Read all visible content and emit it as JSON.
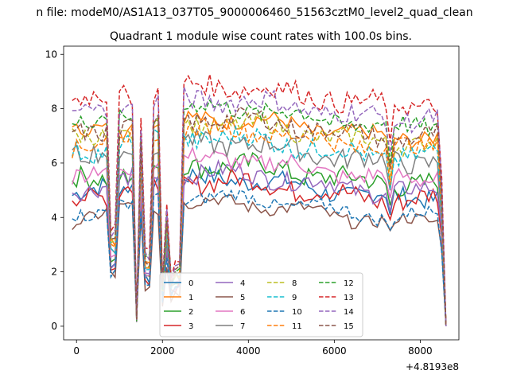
{
  "chart_data": {
    "type": "line",
    "suptitle": "n file: modeM0/AS1A13_037T05_9000006460_51563cztM0_level2_quad_clean",
    "title": "Quadrant 1 module wise count rates with 100.0s bins.",
    "xlabel": "",
    "ylabel": "",
    "x_offset_label": "+4.8193e8",
    "xlim": [
      -300,
      8900
    ],
    "ylim": [
      -0.5,
      10.3
    ],
    "xticks": [
      "0",
      "2000",
      "4000",
      "6000",
      "8000"
    ],
    "yticks": [
      "0",
      "2",
      "4",
      "6",
      "8",
      "10"
    ],
    "legend_position": "lower-center",
    "legend_columns": 4,
    "x": [
      -100,
      0,
      100,
      200,
      300,
      400,
      500,
      600,
      700,
      800,
      900,
      1000,
      1100,
      1200,
      1300,
      1400,
      1500,
      1600,
      1700,
      1800,
      1900,
      2000,
      2100,
      2200,
      2300,
      2400,
      2500,
      2600,
      2700,
      2800,
      2900,
      3000,
      3100,
      3200,
      3300,
      3400,
      3500,
      3600,
      3700,
      3800,
      3900,
      4000,
      4100,
      4200,
      4300,
      4400,
      4500,
      4600,
      4700,
      4800,
      4900,
      5000,
      5100,
      5200,
      5300,
      5400,
      5500,
      5600,
      5700,
      5800,
      5900,
      6000,
      6100,
      6200,
      6300,
      6400,
      6500,
      6600,
      6700,
      6800,
      6900,
      7000,
      7100,
      7200,
      7300,
      7400,
      7500,
      7600,
      7700,
      7800,
      7900,
      8000,
      8100,
      8200,
      8300,
      8400,
      8500,
      8600
    ],
    "gaps": [
      {
        "start": 800,
        "end": 900,
        "depth": 0.4
      },
      {
        "start": 1400,
        "end": 1500,
        "depth": 0.02
      },
      {
        "start": 1500,
        "end": 1600,
        "depth": 0.9
      },
      {
        "start": 1600,
        "end": 1700,
        "depth": 0.3
      },
      {
        "start": 2000,
        "end": 2100,
        "depth": 0.15
      },
      {
        "start": 2100,
        "end": 2200,
        "depth": 0.5
      },
      {
        "start": 2200,
        "end": 2300,
        "depth": 0.2
      },
      {
        "start": 2300,
        "end": 2400,
        "depth": 0.25
      },
      {
        "start": 7300,
        "end": 7300,
        "depth": 0.75
      },
      {
        "start": 8500,
        "end": 8500,
        "depth": 0.6
      },
      {
        "start": 8600,
        "end": 8600,
        "depth": 0.0
      }
    ],
    "series": [
      {
        "name": "0",
        "color": "#1f77b4",
        "dash": "solid",
        "base": 5.1,
        "amp": 0.35
      },
      {
        "name": "1",
        "color": "#ff7f0e",
        "dash": "solid",
        "base": 7.3,
        "amp": 0.3
      },
      {
        "name": "2",
        "color": "#2ca02c",
        "dash": "solid",
        "base": 5.6,
        "amp": 0.4
      },
      {
        "name": "3",
        "color": "#d62728",
        "dash": "solid",
        "base": 5.0,
        "amp": 0.4
      },
      {
        "name": "4",
        "color": "#9467bd",
        "dash": "solid",
        "base": 5.3,
        "amp": 0.35
      },
      {
        "name": "5",
        "color": "#8c564b",
        "dash": "solid",
        "base": 4.2,
        "amp": 0.25
      },
      {
        "name": "6",
        "color": "#e377c2",
        "dash": "solid",
        "base": 5.8,
        "amp": 0.35
      },
      {
        "name": "7",
        "color": "#7f7f7f",
        "dash": "solid",
        "base": 6.4,
        "amp": 0.4
      },
      {
        "name": "8",
        "color": "#bcbd22",
        "dash": "dashed",
        "base": 7.1,
        "amp": 0.35
      },
      {
        "name": "9",
        "color": "#17becf",
        "dash": "dashed",
        "base": 6.6,
        "amp": 0.4
      },
      {
        "name": "10",
        "color": "#1f77b4",
        "dash": "dashed",
        "base": 4.4,
        "amp": 0.25
      },
      {
        "name": "11",
        "color": "#ff7f0e",
        "dash": "dashed",
        "base": 6.9,
        "amp": 0.35
      },
      {
        "name": "12",
        "color": "#2ca02c",
        "dash": "dashed",
        "base": 7.7,
        "amp": 0.35
      },
      {
        "name": "13",
        "color": "#d62728",
        "dash": "dashed",
        "base": 8.5,
        "amp": 0.4
      },
      {
        "name": "14",
        "color": "#9467bd",
        "dash": "dashed",
        "base": 8.0,
        "amp": 0.4
      },
      {
        "name": "15",
        "color": "#8c564b",
        "dash": "dashed",
        "base": 7.3,
        "amp": 0.35
      }
    ]
  }
}
